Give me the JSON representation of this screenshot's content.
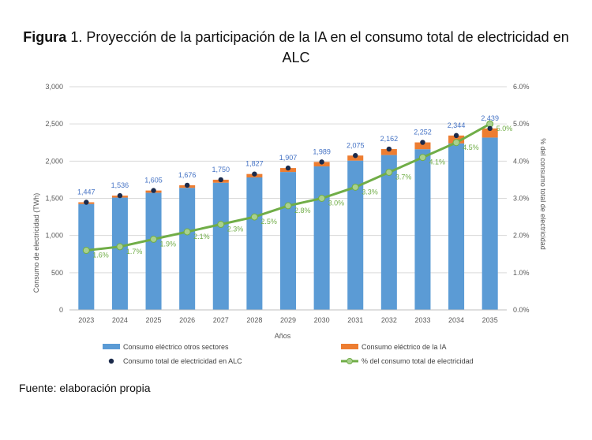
{
  "figure": {
    "label": "Figura",
    "number": "1.",
    "title": "Proyección de la participación de la IA en el consumo total de electricidad en ALC"
  },
  "source": "Fuente: elaboración propia",
  "chart_data": {
    "type": "bar",
    "xlabel": "Años",
    "ylabel": "Consumo de electricidad (TWh)",
    "y2label": "% del consumo total de electricidad",
    "categories": [
      "2023",
      "2024",
      "2025",
      "2026",
      "2027",
      "2028",
      "2029",
      "2030",
      "2031",
      "2032",
      "2033",
      "2034",
      "2035"
    ],
    "ylim": [
      0,
      3000
    ],
    "yticks": [
      0,
      500,
      1000,
      1500,
      2000,
      2500,
      3000
    ],
    "ytick_labels": [
      "0",
      "500",
      "1,000",
      "1,500",
      "2,000",
      "2,500",
      "3,000"
    ],
    "y2lim": [
      0,
      6
    ],
    "y2ticks": [
      0,
      1,
      2,
      3,
      4,
      5,
      6
    ],
    "y2tick_labels": [
      "0.0%",
      "1.0%",
      "2.0%",
      "3.0%",
      "4.0%",
      "5.0%",
      "6.0%"
    ],
    "grid": true,
    "legend_position": "bottom",
    "series": [
      {
        "name": "Consumo eléctrico otros sectores",
        "kind": "stacked-bar",
        "color": "#5b9bd5",
        "values": [
          1424,
          1510,
          1575,
          1641,
          1710,
          1781,
          1854,
          1929,
          2007,
          2082,
          2160,
          2238,
          2317
        ]
      },
      {
        "name": "Consumo eléctrico de la IA",
        "kind": "stacked-bar",
        "color": "#ed7d31",
        "values": [
          23,
          26,
          30,
          35,
          40,
          46,
          53,
          60,
          68,
          80,
          92,
          106,
          122
        ]
      },
      {
        "name": "Consumo total de electricidad en ALC",
        "kind": "point",
        "color": "#1b2a4a",
        "values": [
          1447,
          1536,
          1605,
          1676,
          1750,
          1827,
          1907,
          1989,
          2075,
          2162,
          2252,
          2344,
          2439
        ],
        "labels": [
          "1,447",
          "1,536",
          "1,605",
          "1,676",
          "1,750",
          "1,827",
          "1,907",
          "1,989",
          "2,075",
          "2,162",
          "2,252",
          "2,344",
          "2,439"
        ],
        "label_color": "#4472c4"
      },
      {
        "name": "% del consumo total de electricidad",
        "kind": "line",
        "axis": "right",
        "color": "#70ad47",
        "values": [
          1.6,
          1.7,
          1.9,
          2.1,
          2.3,
          2.5,
          2.8,
          3.0,
          3.3,
          3.7,
          4.1,
          4.5,
          5.0
        ],
        "labels": [
          "1.6%",
          "1.7%",
          "1.9%",
          "2.1%",
          "2.3%",
          "2.5%",
          "2.8%",
          "3.0%",
          "3.3%",
          "3.7%",
          "4.1%",
          "4.5%",
          "5.0%"
        ]
      }
    ]
  }
}
